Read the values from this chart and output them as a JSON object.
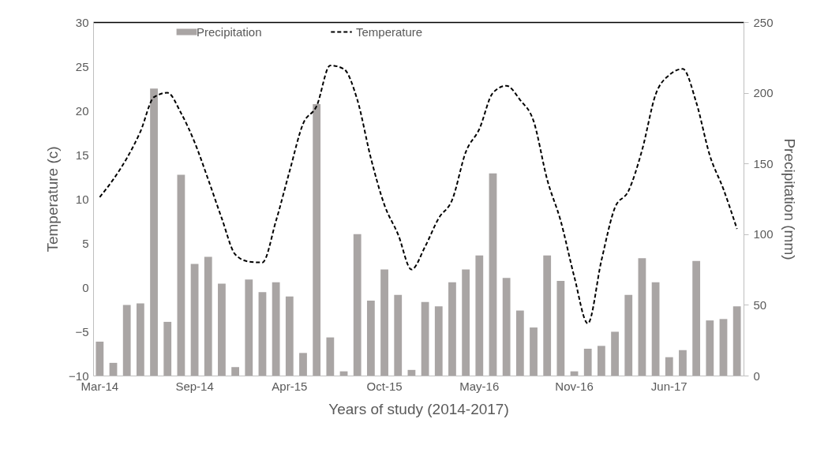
{
  "chart_data": {
    "type": "bar",
    "xlabel": "Years of study (2014-2017)",
    "ylabel": "Temperature (c)",
    "y2label": "Precipitation (mm)",
    "categories": [
      "Mar-14",
      null,
      null,
      null,
      null,
      null,
      null,
      "Sep-14",
      null,
      null,
      null,
      null,
      null,
      null,
      "Apr-15",
      null,
      null,
      null,
      null,
      null,
      null,
      "Oct-15",
      null,
      null,
      null,
      null,
      null,
      null,
      "May-16",
      null,
      null,
      null,
      null,
      null,
      null,
      "Nov-16",
      null,
      null,
      null,
      null,
      null,
      null,
      "Jun-17",
      null,
      null,
      null,
      null,
      null
    ],
    "series": [
      {
        "name": "Precipitation",
        "axis": "y2",
        "color": "#a9a5a4",
        "values": [
          24,
          9,
          50,
          51,
          203,
          38,
          142,
          79,
          84,
          65,
          6,
          68,
          59,
          66,
          56,
          16,
          192,
          27,
          3,
          100,
          53,
          75,
          57,
          4,
          52,
          49,
          66,
          75,
          85,
          143,
          69,
          46,
          34,
          85,
          67,
          3,
          19,
          21,
          31,
          57,
          83,
          66,
          13,
          18,
          81,
          39,
          40,
          49
        ]
      },
      {
        "name": "Temperature",
        "type": "line",
        "axis": "y",
        "color": "#000000",
        "line_style": "dashed",
        "values": [
          10.2,
          12.2,
          14.6,
          17.6,
          21.5,
          22.0,
          19.7,
          16.4,
          12.2,
          7.8,
          3.7,
          2.9,
          2.8,
          7.5,
          13.1,
          18.5,
          20.5,
          25.1,
          24.7,
          21.2,
          14.6,
          9.3,
          6.0,
          2.0,
          4.6,
          7.8,
          9.9,
          15.3,
          17.9,
          22.0,
          22.8,
          21.2,
          18.8,
          12.2,
          7.5,
          1.2,
          -4.1,
          3.0,
          9.0,
          10.9,
          15.5,
          21.8,
          24.0,
          24.7,
          20.9,
          14.9,
          11.1,
          6.6
        ]
      }
    ],
    "ylim": [
      -10,
      30
    ],
    "yticks": [
      -10,
      -5,
      0,
      5,
      10,
      15,
      20,
      25,
      30
    ],
    "y2lim": [
      0,
      250
    ],
    "y2ticks": [
      0,
      50,
      100,
      150,
      200,
      250
    ],
    "grid": false,
    "legend": "top",
    "marker": "none"
  }
}
